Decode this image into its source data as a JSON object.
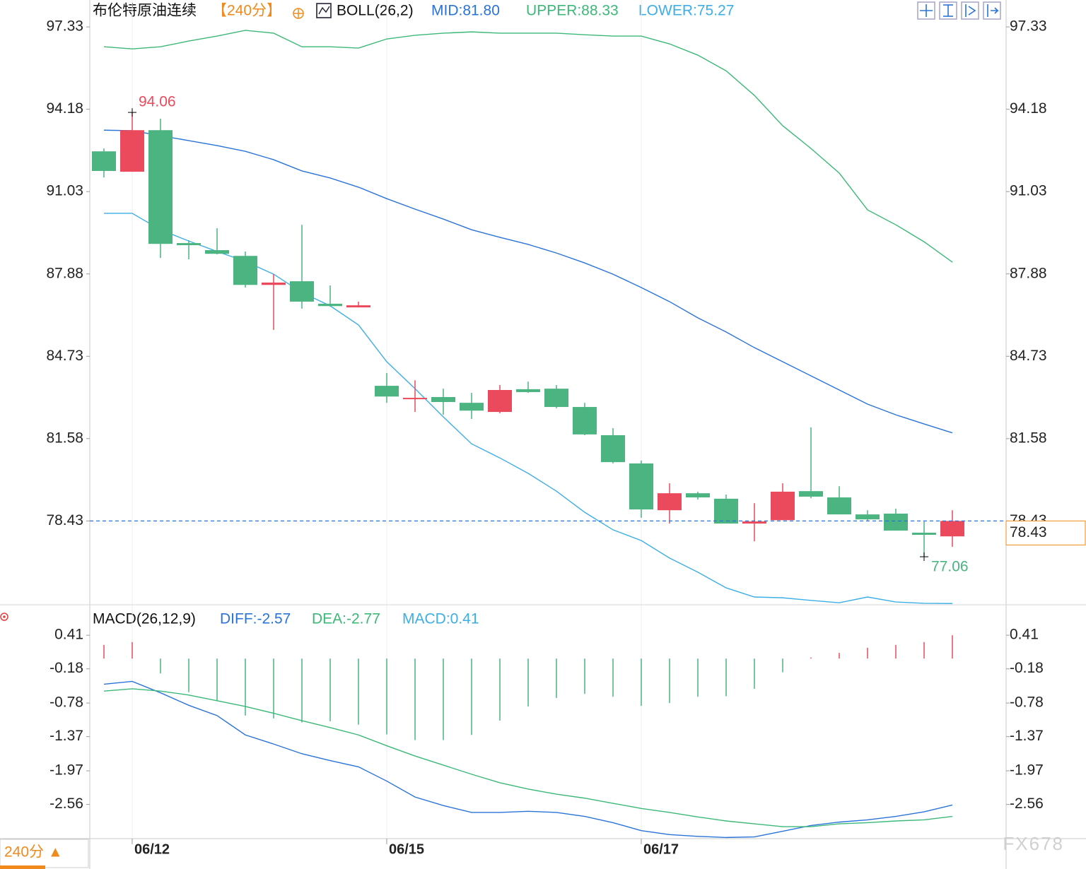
{
  "chart_data": [
    {
      "type": "candlestick",
      "title": "布伦特原油连续",
      "period": "【240分】",
      "indicator": "BOLL(26,2)",
      "categories": [
        null,
        "06/12",
        null,
        null,
        null,
        null,
        null,
        null,
        null,
        null,
        "06/15",
        null,
        null,
        null,
        null,
        null,
        null,
        null,
        null,
        "06/17",
        null,
        null,
        null,
        null,
        null,
        null,
        null,
        null,
        null,
        null,
        null
      ],
      "open": [
        92.57,
        91.79,
        93.38,
        89.06,
        88.79,
        88.57,
        87.46,
        87.6,
        86.74,
        86.6,
        83.6,
        83.09,
        83.17,
        82.95,
        82.6,
        83.47,
        83.49,
        82.79,
        81.71,
        80.63,
        78.84,
        79.49,
        79.28,
        78.33,
        78.46,
        79.57,
        79.33,
        78.68,
        78.71,
        77.98,
        77.84
      ],
      "high": [
        92.68,
        94.06,
        93.82,
        89.17,
        89.63,
        88.74,
        87.87,
        89.76,
        87.44,
        86.82,
        84.09,
        83.81,
        83.49,
        83.33,
        83.63,
        83.76,
        83.63,
        82.95,
        81.98,
        80.74,
        79.87,
        79.55,
        79.44,
        79.11,
        79.87,
        82.01,
        79.76,
        78.84,
        78.9,
        78.41,
        78.84
      ],
      "low": [
        91.57,
        91.79,
        88.49,
        88.44,
        88.63,
        87.36,
        85.74,
        86.55,
        86.63,
        86.6,
        82.95,
        82.6,
        82.49,
        82.33,
        82.55,
        83.33,
        82.74,
        81.71,
        80.63,
        78.55,
        78.33,
        79.25,
        78.33,
        77.65,
        78.46,
        79.3,
        78.68,
        78.44,
        78.06,
        77.06,
        77.44
      ],
      "close": [
        91.82,
        93.38,
        89.03,
        88.98,
        88.65,
        87.46,
        87.55,
        86.82,
        86.65,
        86.68,
        83.19,
        83.14,
        82.98,
        82.65,
        83.44,
        83.36,
        82.79,
        81.74,
        80.68,
        78.87,
        79.49,
        79.33,
        78.33,
        78.41,
        79.55,
        79.36,
        78.68,
        78.49,
        78.06,
        77.9,
        78.43
      ],
      "up_color": "#eb4a5c",
      "down_color": "#4cb480",
      "series": [
        {
          "name": "MID:81.80",
          "color": "#2a73d8",
          "values": [
            93.38,
            93.36,
            93.17,
            92.98,
            92.79,
            92.57,
            92.25,
            91.82,
            91.55,
            91.2,
            90.76,
            90.36,
            89.98,
            89.57,
            89.28,
            89.01,
            88.68,
            88.3,
            87.87,
            87.36,
            86.82,
            86.2,
            85.66,
            85.06,
            84.52,
            83.98,
            83.44,
            82.9,
            82.49,
            82.14,
            81.8
          ]
        },
        {
          "name": "UPPER:88.33",
          "color": "#3cb878",
          "values": [
            96.57,
            96.49,
            96.57,
            96.79,
            96.98,
            97.2,
            97.09,
            96.57,
            96.57,
            96.52,
            96.87,
            97.01,
            97.09,
            97.14,
            97.09,
            97.09,
            97.09,
            97.03,
            96.98,
            96.98,
            96.68,
            96.25,
            95.65,
            94.71,
            93.55,
            92.68,
            91.74,
            90.33,
            89.76,
            89.11,
            88.33
          ]
        },
        {
          "name": "LOWER:75.27",
          "color": "#3eaee8",
          "values": [
            90.2,
            90.2,
            89.57,
            89.14,
            88.74,
            88.36,
            87.87,
            87.17,
            86.66,
            85.93,
            84.52,
            83.49,
            82.41,
            81.38,
            80.84,
            80.25,
            79.57,
            78.76,
            78.09,
            77.68,
            77.01,
            76.47,
            75.87,
            75.52,
            75.49,
            75.39,
            75.3,
            75.52,
            75.33,
            75.28,
            75.27
          ]
        }
      ],
      "ylim": [
        75.25,
        98.36
      ],
      "yticks": [
        97.33,
        94.18,
        91.03,
        87.88,
        84.73,
        81.58,
        78.43
      ],
      "price_color": "#f08a1c"
    },
    {
      "type": "macd",
      "title": "MACD(26,12,9)",
      "series": [
        {
          "name": "DIFF:-2.57",
          "color": "#2a73d8",
          "values": [
            -0.45,
            -0.4,
            -0.6,
            -0.82,
            -1.0,
            -1.34,
            -1.5,
            -1.67,
            -1.79,
            -1.9,
            -2.15,
            -2.43,
            -2.58,
            -2.7,
            -2.7,
            -2.68,
            -2.7,
            -2.77,
            -2.88,
            -3.02,
            -3.09,
            -3.12,
            -3.14,
            -3.13,
            -3.03,
            -2.93,
            -2.87,
            -2.83,
            -2.77,
            -2.69,
            -2.57
          ]
        },
        {
          "name": "DEA:-2.77",
          "color": "#3cb878",
          "values": [
            -0.57,
            -0.53,
            -0.57,
            -0.64,
            -0.74,
            -0.84,
            -0.96,
            -1.09,
            -1.21,
            -1.34,
            -1.53,
            -1.71,
            -1.87,
            -2.03,
            -2.18,
            -2.29,
            -2.38,
            -2.45,
            -2.54,
            -2.63,
            -2.7,
            -2.78,
            -2.85,
            -2.9,
            -2.95,
            -2.95,
            -2.9,
            -2.88,
            -2.85,
            -2.83,
            -2.77
          ]
        },
        {
          "name": "MACD:0.41",
          "color": "#3eaee8",
          "values": [
            0.24,
            0.29,
            -0.26,
            -0.59,
            -0.74,
            -1.0,
            -1.05,
            -1.12,
            -1.1,
            -1.16,
            -1.33,
            -1.43,
            -1.43,
            -1.34,
            -1.09,
            -0.84,
            -0.69,
            -0.62,
            -0.67,
            -0.83,
            -0.78,
            -0.67,
            -0.66,
            -0.53,
            -0.24,
            0.02,
            0.1,
            0.19,
            0.24,
            0.29,
            0.41
          ]
        }
      ],
      "up_color": "#eb4a5c",
      "down_color": "#4cb480",
      "ylim": [
        -3.16,
        0.92
      ],
      "yticks": [
        0.41,
        -0.18,
        -0.78,
        -1.37,
        -1.97,
        -2.56
      ]
    }
  ],
  "period_button": "240分 ▲",
  "watermark": "FX678"
}
